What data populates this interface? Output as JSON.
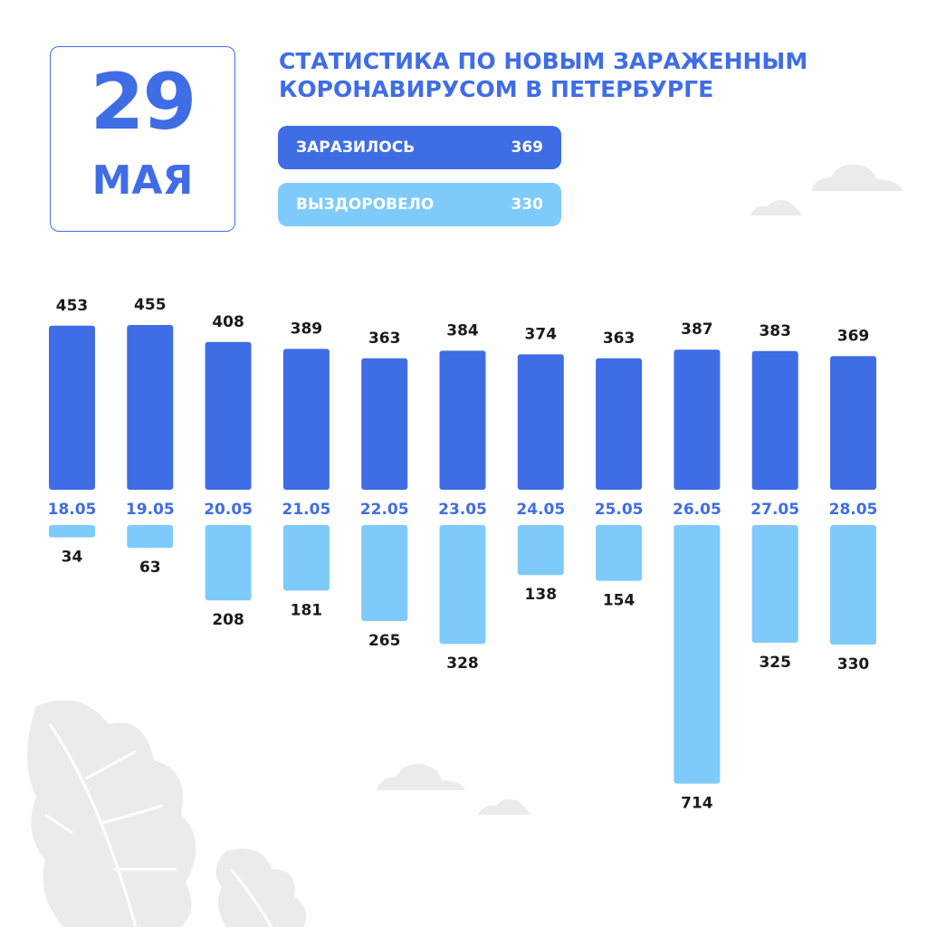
{
  "header": {
    "day": "29",
    "month": "МАЯ",
    "title_line1": "СТАТИСТИКА ПО НОВЫМ ЗАРАЖЕННЫМ",
    "title_line2": "КОРОНАВИРУСОМ В ПЕТЕРБУРГЕ"
  },
  "legend": {
    "infected_label": "ЗАРАЗИЛОСЬ",
    "infected_value": "369",
    "recovered_label": "ВЫЗДОРОВЕЛО",
    "recovered_value": "330"
  },
  "colors": {
    "infected": "#3f6de6",
    "recovered": "#7ecbfb",
    "decoration": "#ebebeb",
    "label_text": "#1a1a1a"
  },
  "chart_data": {
    "type": "bar",
    "categories": [
      "18.05",
      "19.05",
      "20.05",
      "21.05",
      "22.05",
      "23.05",
      "24.05",
      "25.05",
      "26.05",
      "27.05",
      "28.05"
    ],
    "series": [
      {
        "name": "ЗАРАЗИЛОСЬ",
        "values": [
          453,
          455,
          408,
          389,
          363,
          384,
          374,
          363,
          387,
          383,
          369
        ]
      },
      {
        "name": "ВЫЗДОРОВЕЛО",
        "values": [
          34,
          63,
          208,
          181,
          265,
          328,
          138,
          154,
          714,
          325,
          330
        ]
      }
    ],
    "grid": false,
    "legend": "top"
  }
}
